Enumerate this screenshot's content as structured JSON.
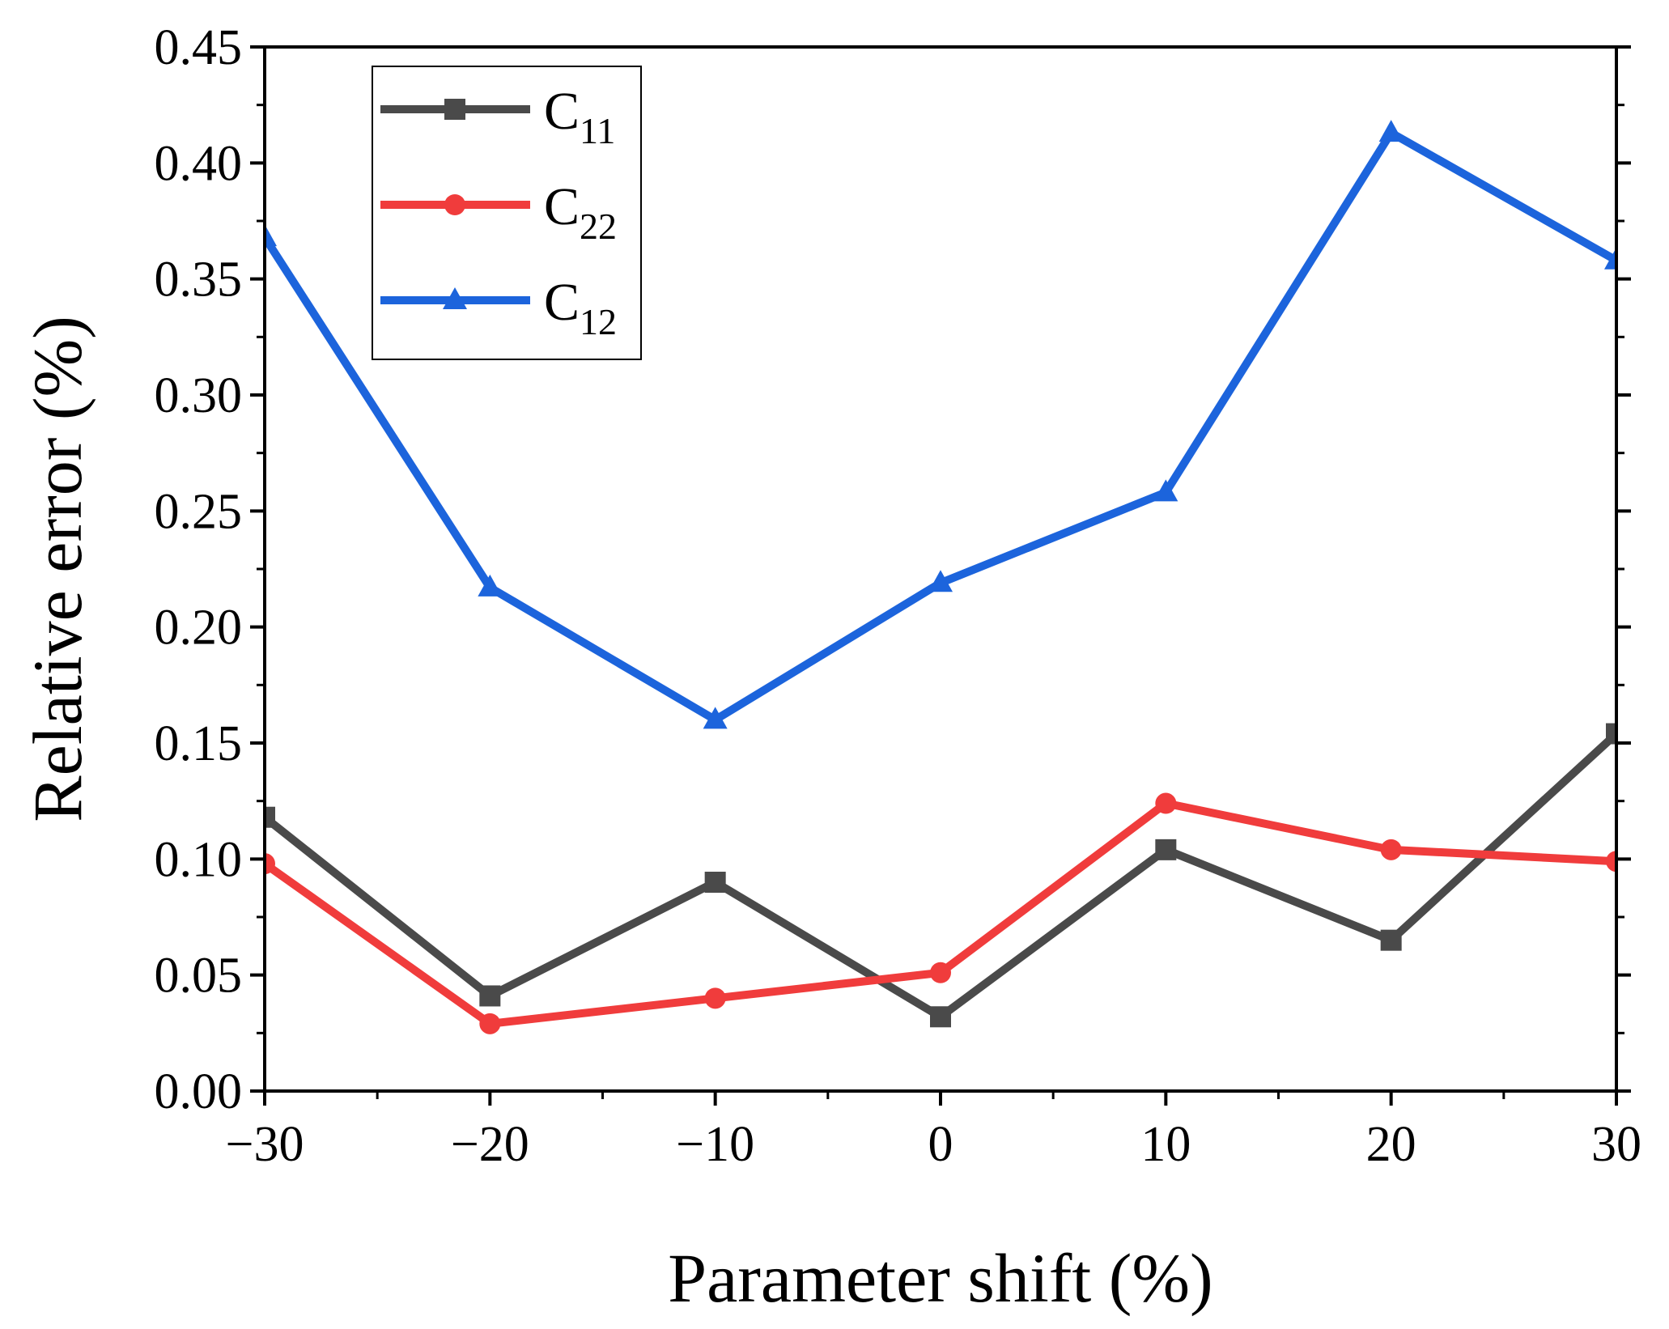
{
  "chart_data": {
    "type": "line",
    "title": "",
    "xlabel": "Parameter shift (%)",
    "ylabel": "Relative error (%)",
    "xlim": [
      -30,
      30
    ],
    "ylim": [
      0,
      0.45
    ],
    "x": [
      -30,
      -20,
      -10,
      0,
      10,
      20,
      30
    ],
    "xticks": [
      -30,
      -20,
      -10,
      0,
      10,
      20,
      30
    ],
    "xtick_labels": [
      "−30",
      "−20",
      "−10",
      "0",
      "10",
      "20",
      "30"
    ],
    "yticks": [
      0,
      0.05,
      0.1,
      0.15,
      0.2,
      0.25,
      0.3,
      0.35,
      0.4,
      0.45
    ],
    "ytick_labels": [
      "0.00",
      "0.05",
      "0.10",
      "0.15",
      "0.20",
      "0.25",
      "0.30",
      "0.35",
      "0.40",
      "0.45"
    ],
    "legend_position": "top-left",
    "series": [
      {
        "name": "C11",
        "base": "C",
        "sub": "11",
        "color": "#4a4a4a",
        "marker": "square",
        "values": [
          0.118,
          0.041,
          0.09,
          0.032,
          0.104,
          0.065,
          0.154
        ]
      },
      {
        "name": "C22",
        "base": "C",
        "sub": "22",
        "color": "#f03c3c",
        "marker": "circle",
        "values": [
          0.098,
          0.029,
          0.04,
          0.051,
          0.124,
          0.104,
          0.099
        ]
      },
      {
        "name": "C12",
        "base": "C",
        "sub": "12",
        "color": "#1c64dc",
        "marker": "triangle",
        "values": [
          0.368,
          0.217,
          0.16,
          0.219,
          0.258,
          0.413,
          0.358
        ]
      }
    ]
  }
}
